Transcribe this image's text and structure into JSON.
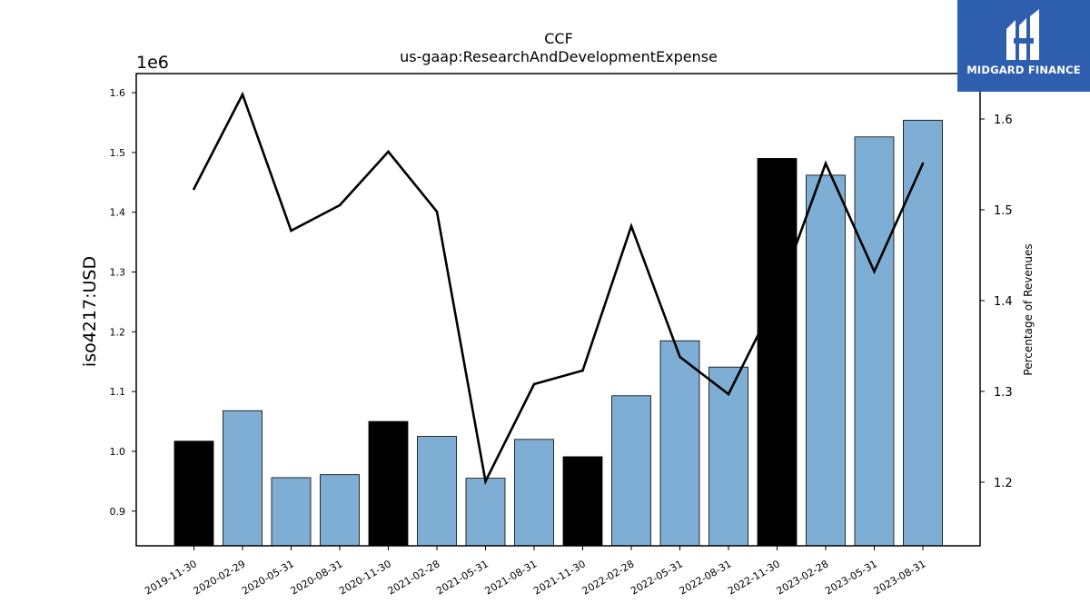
{
  "chart_data": {
    "type": "bar",
    "title": "CCF",
    "subtitle": "us-gaap:ResearchAndDevelopmentExpense",
    "ylabel": "iso4217:USD",
    "y_offset_label": "1e6",
    "y2label": "Percentage of Revenues",
    "categories": [
      "2019-11-30",
      "2020-02-29",
      "2020-05-31",
      "2020-08-31",
      "2020-11-30",
      "2021-02-28",
      "2021-05-31",
      "2021-08-31",
      "2021-11-30",
      "2022-02-28",
      "2022-05-31",
      "2022-08-31",
      "2022-11-30",
      "2023-02-28",
      "2023-05-31",
      "2023-08-31"
    ],
    "series": [
      {
        "type": "bar",
        "values": [
          1017000,
          1068000,
          956000,
          961000,
          1050000,
          1025000,
          955000,
          1020000,
          991000,
          1093000,
          1185000,
          1141000,
          1490000,
          1462000,
          1526000,
          1554000
        ],
        "bar_colors": [
          "#000000",
          "#7eaed3",
          "#7eaed3",
          "#7eaed3",
          "#000000",
          "#7eaed3",
          "#7eaed3",
          "#7eaed3",
          "#000000",
          "#7eaed3",
          "#7eaed3",
          "#7eaed3",
          "#000000",
          "#7eaed3",
          "#7eaed3",
          "#7eaed3"
        ]
      },
      {
        "type": "line",
        "axis": "right",
        "color": "#000000",
        "values": [
          1.523,
          1.627,
          1.477,
          1.505,
          1.564,
          1.498,
          1.201,
          1.308,
          1.323,
          1.482,
          1.338,
          1.297,
          1.404,
          1.551,
          1.432,
          1.551
        ]
      }
    ],
    "ylim": [
      842000.0,
      1632000.0
    ],
    "y_ticks": [
      0.9,
      1.0,
      1.1,
      1.2,
      1.3,
      1.4,
      1.5,
      1.6
    ],
    "y2lim": [
      1.13,
      1.65
    ],
    "y2_ticks": [
      1.2,
      1.3,
      1.4,
      1.5,
      1.6
    ],
    "grid": false
  },
  "logo": {
    "text": "MIDGARD FINANCE",
    "background": "#2e5fae"
  }
}
